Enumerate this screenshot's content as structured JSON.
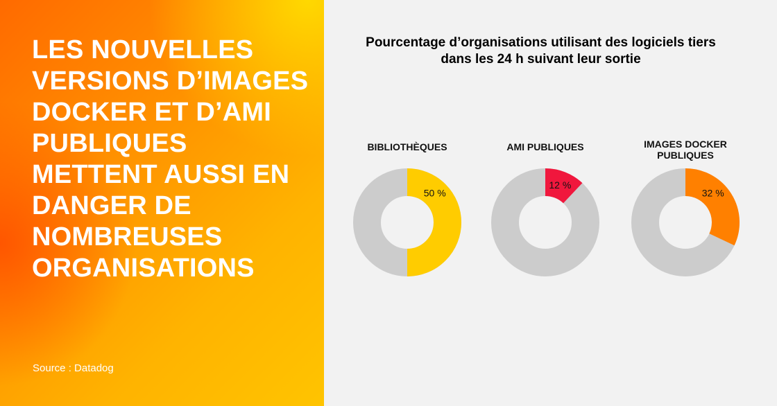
{
  "headline": "LES NOUVELLES VERSIONS D’IMAGES DOCKER ET D’AMI PUBLIQUES METTENT AUSSI EN DANGER DE NOMBREUSES ORGANISATIONS",
  "source": "Source : Datadog",
  "chart_data": {
    "type": "pie",
    "title": "Pourcentage d’organisations utilisant des logiciels tiers dans les 24 h suivant leur sortie",
    "categories": [
      "BIBLIOTHÈQUES",
      "AMI PUBLIQUES",
      "IMAGES DOCKER PUBLIQUES"
    ],
    "values": [
      50,
      12,
      32
    ],
    "value_labels": [
      "50 %",
      "12 %",
      "32 %"
    ],
    "colors": [
      "#ffcc00",
      "#f0173d",
      "#ff8000"
    ],
    "remainder_color": "#cccccc"
  }
}
